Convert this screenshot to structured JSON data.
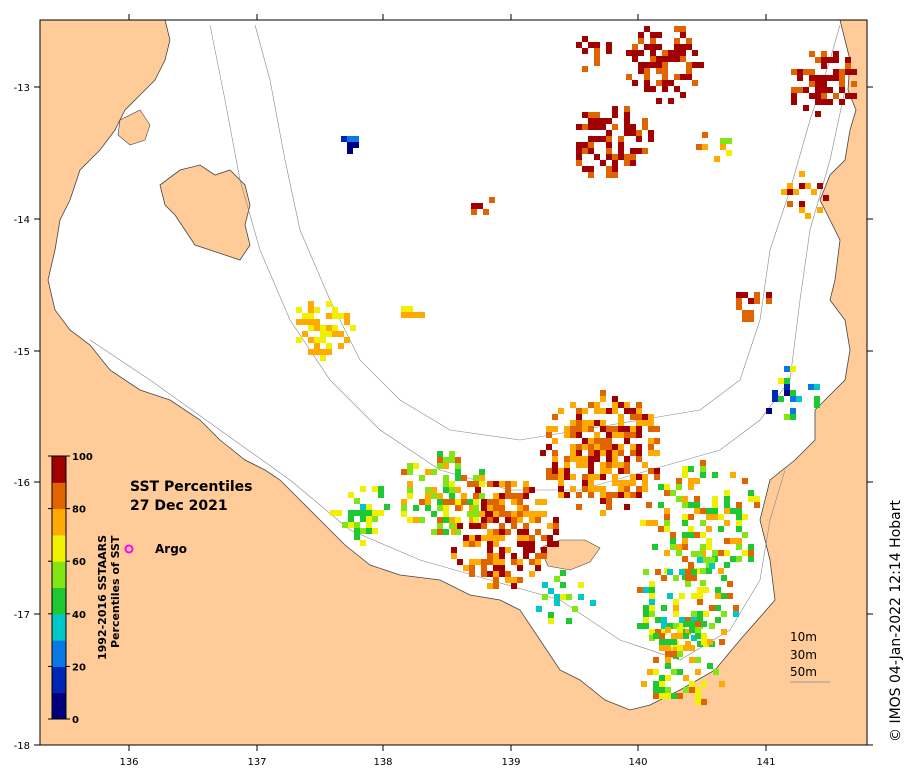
{
  "title": {
    "line1": "SST Percentiles",
    "line2": "27 Dec 2021"
  },
  "legend": {
    "argo_label": "Argo",
    "argo_color": "#ff00ff"
  },
  "colorbar": {
    "title_line1": "1992-2016 SSTAARS",
    "title_line2": "Percentiles of SST",
    "tick_labels": [
      "0",
      "20",
      "40",
      "60",
      "80",
      "100"
    ],
    "colors": [
      "#00007f",
      "#0026b5",
      "#0a78e6",
      "#00c8c8",
      "#1ec832",
      "#82e614",
      "#f0f000",
      "#ffaa00",
      "#e06400",
      "#a00000"
    ]
  },
  "axes": {
    "x_ticks": [
      "136",
      "137",
      "138",
      "139",
      "140",
      "141"
    ],
    "y_ticks": [
      "-13",
      "-14",
      "-15",
      "-16",
      "-17",
      "-18"
    ]
  },
  "depth_legend": [
    "10m",
    "30m",
    "50m"
  ],
  "credit": "© IMOS 04-Jan-2022 12:14 Hobart",
  "colors": {
    "land": "#ffcc99",
    "sea": "#ffffff",
    "contour": "#888888"
  }
}
